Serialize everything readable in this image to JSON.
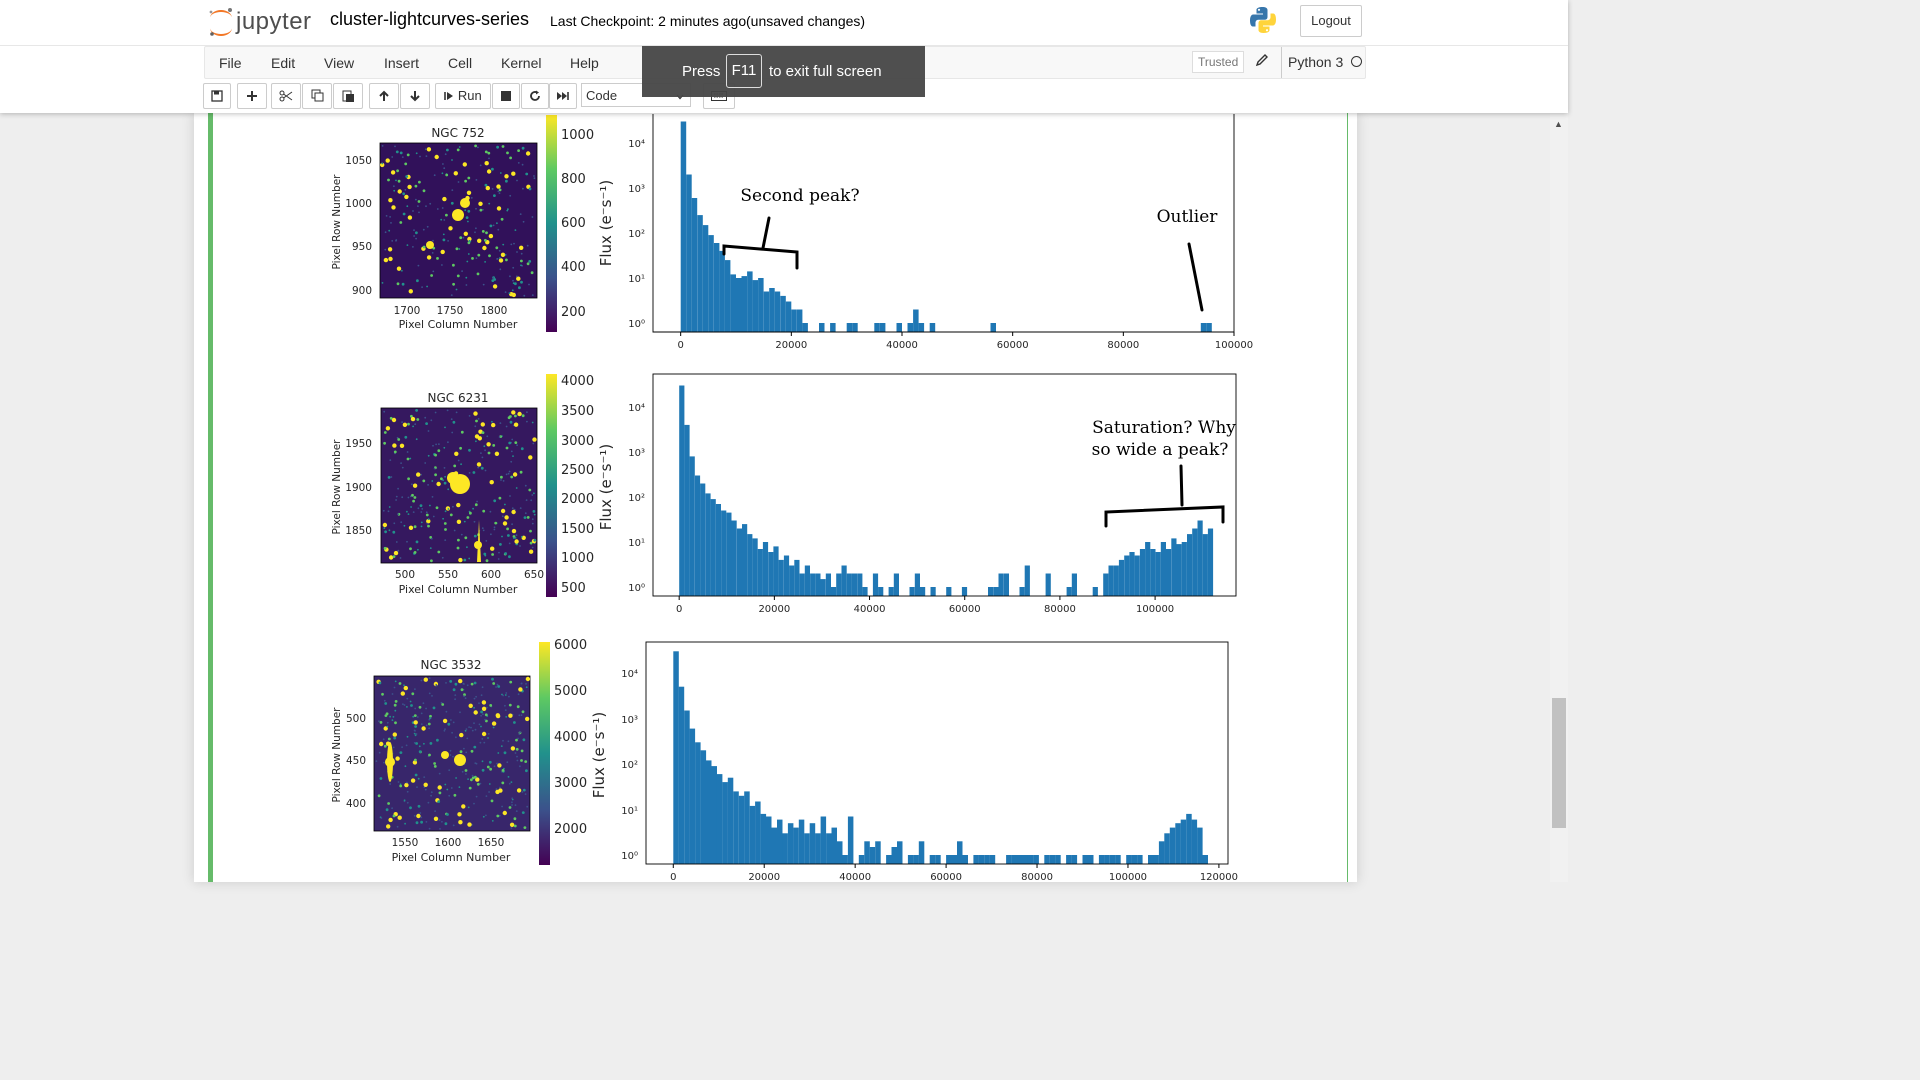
{
  "header": {
    "logo_text": "jupyter",
    "notebook_name": "cluster-lightcurves-series",
    "checkpoint": "Last Checkpoint: 2 minutes ago",
    "autosave": "(unsaved changes)",
    "logout_label": "Logout"
  },
  "menu": {
    "items": [
      "File",
      "Edit",
      "View",
      "Insert",
      "Cell",
      "Kernel",
      "Help"
    ],
    "trusted_label": "Trusted",
    "kernel_name": "Python 3"
  },
  "toolbar": {
    "run_label": "Run",
    "cell_type": "Code"
  },
  "fullscreen_notice": {
    "press": "Press",
    "key": "F11",
    "message": "to exit full screen"
  },
  "colors": {
    "histogram_bar": "#1f77b4",
    "cell_border": "#66bb6a",
    "viridis_low": "#440154",
    "viridis_high": "#fde725"
  },
  "chart_data": [
    {
      "type": "heatmap",
      "title": "NGC 752",
      "xlabel": "Pixel Column Number",
      "ylabel": "Pixel Row Number",
      "x_ticks": [
        "1700",
        "1750",
        "1800"
      ],
      "y_ticks": [
        "1050",
        "1000",
        "950",
        "900"
      ],
      "colorbar_ticks": [
        "1000",
        "800",
        "600",
        "400",
        "200"
      ]
    },
    {
      "type": "bar",
      "title": "",
      "ylabel": "Flux (e⁻s⁻¹)",
      "xlabel": "",
      "y_scale": "log",
      "x_ticks": [
        "0",
        "20000",
        "40000",
        "60000",
        "80000",
        "100000"
      ],
      "y_ticks": [
        "10⁴",
        "10³",
        "10²",
        "10¹",
        "10⁰"
      ],
      "xlim": [
        -5000,
        100000
      ],
      "bins": [
        [
          0,
          30000
        ],
        [
          1000,
          2000
        ],
        [
          2000,
          600
        ],
        [
          3000,
          250
        ],
        [
          4000,
          150
        ],
        [
          5000,
          90
        ],
        [
          6000,
          60
        ],
        [
          7000,
          40
        ],
        [
          8000,
          25
        ],
        [
          9000,
          12
        ],
        [
          10000,
          10
        ],
        [
          11000,
          11
        ],
        [
          12000,
          14
        ],
        [
          13000,
          9
        ],
        [
          14000,
          10
        ],
        [
          15000,
          5
        ],
        [
          16000,
          6
        ],
        [
          17000,
          5
        ],
        [
          18000,
          4
        ],
        [
          19000,
          3
        ],
        [
          20000,
          2
        ],
        [
          21000,
          2
        ],
        [
          22000,
          1
        ],
        [
          25000,
          1
        ],
        [
          27000,
          1
        ],
        [
          30000,
          1
        ],
        [
          31000,
          1
        ],
        [
          35000,
          1
        ],
        [
          36000,
          1
        ],
        [
          39000,
          1
        ],
        [
          41000,
          1
        ],
        [
          42000,
          2
        ],
        [
          43000,
          1
        ],
        [
          45000,
          1
        ],
        [
          56000,
          1
        ],
        [
          94000,
          1
        ],
        [
          95000,
          1
        ]
      ],
      "annotations": [
        "Second peak?",
        "Outlier"
      ]
    },
    {
      "type": "heatmap",
      "title": "NGC 6231",
      "xlabel": "Pixel Column Number",
      "ylabel": "Pixel Row Number",
      "x_ticks": [
        "500",
        "550",
        "600",
        "650"
      ],
      "y_ticks": [
        "1950",
        "1900",
        "1850"
      ],
      "colorbar_ticks": [
        "4000",
        "3500",
        "3000",
        "2500",
        "2000",
        "1500",
        "1000",
        "500"
      ]
    },
    {
      "type": "bar",
      "title": "",
      "ylabel": "Flux (e⁻s⁻¹)",
      "xlabel": "",
      "y_scale": "log",
      "x_ticks": [
        "0",
        "20000",
        "40000",
        "60000",
        "80000",
        "100000"
      ],
      "y_ticks": [
        "10⁴",
        "10³",
        "10²",
        "10¹",
        "10⁰"
      ],
      "xlim": [
        -5500,
        117000
      ],
      "bins": [
        [
          0,
          30000
        ],
        [
          1100,
          4000
        ],
        [
          2200,
          800
        ],
        [
          3300,
          300
        ],
        [
          4400,
          200
        ],
        [
          5500,
          120
        ],
        [
          6600,
          90
        ],
        [
          7700,
          70
        ],
        [
          8800,
          50
        ],
        [
          9900,
          45
        ],
        [
          11000,
          30
        ],
        [
          12100,
          20
        ],
        [
          13200,
          25
        ],
        [
          14300,
          15
        ],
        [
          15400,
          12
        ],
        [
          16500,
          7
        ],
        [
          17600,
          10
        ],
        [
          18700,
          6
        ],
        [
          19800,
          8
        ],
        [
          20900,
          4
        ],
        [
          22000,
          5
        ],
        [
          23100,
          3
        ],
        [
          24200,
          4
        ],
        [
          25300,
          2
        ],
        [
          26400,
          3
        ],
        [
          27500,
          2
        ],
        [
          28600,
          2
        ],
        [
          29700,
          1.5
        ],
        [
          30800,
          2
        ],
        [
          31900,
          1
        ],
        [
          33000,
          2
        ],
        [
          34100,
          3
        ],
        [
          35200,
          2
        ],
        [
          36300,
          2
        ],
        [
          37400,
          2
        ],
        [
          38500,
          1
        ],
        [
          40700,
          2
        ],
        [
          41800,
          1
        ],
        [
          44000,
          1
        ],
        [
          45100,
          2
        ],
        [
          48400,
          1
        ],
        [
          49500,
          2
        ],
        [
          50600,
          1
        ],
        [
          52800,
          1
        ],
        [
          56100,
          1
        ],
        [
          59400,
          1
        ],
        [
          64900,
          1
        ],
        [
          66000,
          1
        ],
        [
          67100,
          2
        ],
        [
          68200,
          2
        ],
        [
          71500,
          1
        ],
        [
          72600,
          3
        ],
        [
          77000,
          2
        ],
        [
          81400,
          1
        ],
        [
          82500,
          2
        ],
        [
          86900,
          1
        ],
        [
          89100,
          2
        ],
        [
          90200,
          3
        ],
        [
          91300,
          3
        ],
        [
          92400,
          4
        ],
        [
          93500,
          5
        ],
        [
          94600,
          6
        ],
        [
          95700,
          5
        ],
        [
          96800,
          7
        ],
        [
          97900,
          10
        ],
        [
          99000,
          7
        ],
        [
          100100,
          6
        ],
        [
          101200,
          10
        ],
        [
          102300,
          7
        ],
        [
          103400,
          12
        ],
        [
          104500,
          9
        ],
        [
          105600,
          10
        ],
        [
          106700,
          15
        ],
        [
          107800,
          20
        ],
        [
          108900,
          30
        ],
        [
          110000,
          15
        ],
        [
          111100,
          20
        ]
      ],
      "annotations": [
        "Saturation? Why",
        "so wide a peak?"
      ]
    },
    {
      "type": "heatmap",
      "title": "NGC 3532",
      "xlabel": "Pixel Column Number",
      "ylabel": "Pixel Row Number",
      "x_ticks": [
        "1550",
        "1600",
        "1650"
      ],
      "y_ticks": [
        "500",
        "450",
        "400"
      ],
      "colorbar_ticks": [
        "6000",
        "5000",
        "4000",
        "3000",
        "2000"
      ]
    },
    {
      "type": "bar",
      "title": "",
      "ylabel": "Flux (e⁻s⁻¹)",
      "xlabel": "",
      "y_scale": "log",
      "x_ticks": [
        "0",
        "20000",
        "40000",
        "60000",
        "80000",
        "100000",
        "120000"
      ],
      "y_ticks": [
        "10⁴",
        "10³",
        "10²",
        "10¹",
        "10⁰"
      ],
      "xlim": [
        -6000,
        122000
      ],
      "bins": [
        [
          0,
          30000
        ],
        [
          1200,
          5000
        ],
        [
          2400,
          1500
        ],
        [
          3600,
          600
        ],
        [
          4800,
          300
        ],
        [
          6000,
          200
        ],
        [
          7200,
          120
        ],
        [
          8400,
          90
        ],
        [
          9600,
          60
        ],
        [
          10800,
          40
        ],
        [
          12000,
          50
        ],
        [
          13200,
          25
        ],
        [
          14400,
          20
        ],
        [
          15600,
          25
        ],
        [
          16800,
          12
        ],
        [
          18000,
          15
        ],
        [
          19200,
          8
        ],
        [
          20400,
          7
        ],
        [
          21600,
          4
        ],
        [
          22800,
          6
        ],
        [
          24000,
          3
        ],
        [
          25200,
          5
        ],
        [
          26400,
          4
        ],
        [
          27600,
          6
        ],
        [
          28800,
          3
        ],
        [
          30000,
          5
        ],
        [
          31200,
          3
        ],
        [
          32400,
          7
        ],
        [
          33600,
          3
        ],
        [
          34800,
          4
        ],
        [
          36000,
          2
        ],
        [
          37200,
          1
        ],
        [
          38400,
          7
        ],
        [
          40800,
          1
        ],
        [
          42000,
          2
        ],
        [
          43200,
          1.5
        ],
        [
          44400,
          2
        ],
        [
          46800,
          1
        ],
        [
          48000,
          1.5
        ],
        [
          49200,
          2
        ],
        [
          51600,
          1
        ],
        [
          52800,
          1
        ],
        [
          54000,
          2
        ],
        [
          56400,
          1
        ],
        [
          57600,
          1
        ],
        [
          60000,
          1
        ],
        [
          61200,
          1
        ],
        [
          62400,
          2
        ],
        [
          63600,
          1
        ],
        [
          66000,
          1
        ],
        [
          67200,
          1
        ],
        [
          68400,
          1
        ],
        [
          69600,
          1
        ],
        [
          73200,
          1
        ],
        [
          74400,
          1
        ],
        [
          75600,
          1
        ],
        [
          76800,
          1
        ],
        [
          78000,
          1
        ],
        [
          79200,
          1
        ],
        [
          81600,
          1
        ],
        [
          82800,
          1
        ],
        [
          84000,
          1
        ],
        [
          86400,
          1
        ],
        [
          87600,
          1
        ],
        [
          90000,
          1
        ],
        [
          91200,
          1
        ],
        [
          93600,
          1
        ],
        [
          94800,
          1
        ],
        [
          96000,
          1
        ],
        [
          97200,
          1
        ],
        [
          99600,
          1
        ],
        [
          100800,
          1
        ],
        [
          102000,
          1
        ],
        [
          104400,
          1
        ],
        [
          105600,
          1
        ],
        [
          106800,
          2
        ],
        [
          108000,
          3
        ],
        [
          109200,
          4
        ],
        [
          110400,
          5
        ],
        [
          111600,
          6
        ],
        [
          112800,
          8
        ],
        [
          114000,
          6
        ],
        [
          115200,
          4
        ],
        [
          116400,
          1
        ]
      ],
      "annotations": []
    }
  ]
}
